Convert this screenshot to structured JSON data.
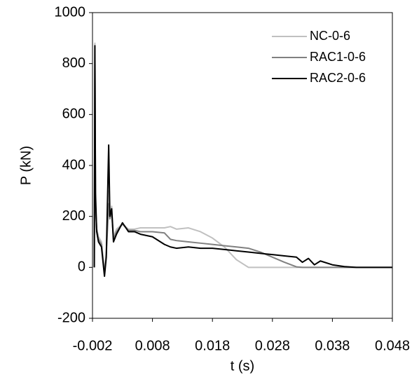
{
  "chart_data": {
    "type": "line",
    "xlabel": "t (s)",
    "ylabel": "P (kN)",
    "x": [
      -0.0017,
      -0.0016,
      -0.0015,
      -0.0013,
      -0.001,
      -0.0005,
      0.0,
      0.0003,
      0.0007,
      0.0009,
      0.0012,
      0.0015,
      0.002,
      0.003,
      0.004,
      0.005,
      0.006,
      0.008,
      0.01,
      0.011,
      0.012,
      0.014,
      0.016,
      0.018,
      0.02,
      0.022,
      0.024,
      0.026,
      0.028,
      0.03,
      0.032,
      0.033,
      0.034,
      0.035,
      0.036,
      0.038,
      0.04,
      0.042,
      0.045,
      0.048
    ],
    "series": [
      {
        "name": "NC-0-6",
        "color": "#c0c0c0",
        "values": [
          0,
          880,
          250,
          150,
          120,
          100,
          -20,
          60,
          300,
          200,
          240,
          120,
          150,
          170,
          150,
          150,
          155,
          155,
          155,
          160,
          150,
          155,
          140,
          115,
          80,
          30,
          0,
          0,
          0,
          0,
          0,
          0,
          0,
          0,
          0,
          0,
          0,
          0,
          0,
          0
        ]
      },
      {
        "name": "RAC1-0-6",
        "color": "#808080",
        "values": [
          0,
          870,
          240,
          150,
          110,
          90,
          -25,
          50,
          250,
          190,
          220,
          110,
          140,
          170,
          145,
          145,
          140,
          140,
          135,
          110,
          105,
          100,
          95,
          90,
          85,
          80,
          75,
          60,
          40,
          20,
          2,
          0,
          0,
          0,
          0,
          0,
          0,
          0,
          0,
          0
        ]
      },
      {
        "name": "RAC2-0-6",
        "color": "#000000",
        "values": [
          0,
          870,
          290,
          140,
          100,
          80,
          -35,
          40,
          480,
          200,
          230,
          100,
          130,
          175,
          140,
          140,
          130,
          120,
          90,
          80,
          75,
          80,
          75,
          75,
          70,
          65,
          60,
          55,
          50,
          45,
          40,
          20,
          35,
          10,
          25,
          10,
          3,
          0,
          0,
          0
        ]
      }
    ],
    "xlim": [
      -0.002,
      0.048
    ],
    "xticks": [
      -0.002,
      0.008,
      0.018,
      0.028,
      0.038,
      0.048
    ],
    "ylim": [
      -200,
      1000
    ],
    "yticks": [
      -200,
      0,
      200,
      400,
      600,
      800,
      1000
    ],
    "grid": false,
    "legend": "upper right"
  }
}
